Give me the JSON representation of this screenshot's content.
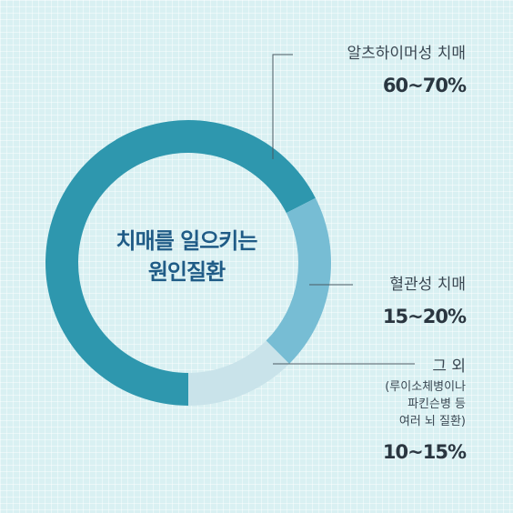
{
  "chart_data": {
    "type": "donut",
    "center_label": [
      "치매를 일으키는",
      "원인질환"
    ],
    "categories": [
      "알츠하이머성 치매",
      "혈관성 치매",
      "그 외"
    ],
    "value_labels": [
      "60~70%",
      "15~20%",
      "10~15%"
    ],
    "values": [
      0.675,
      0.2,
      0.125
    ],
    "notes": [
      "",
      "",
      "(루이소체병이나\n파킨슨병 등\n여러 뇌 질환)"
    ],
    "colors": [
      "#2e97ae",
      "#77bdd4",
      "#c9e3ea"
    ],
    "legend": "none",
    "grid": false
  }
}
